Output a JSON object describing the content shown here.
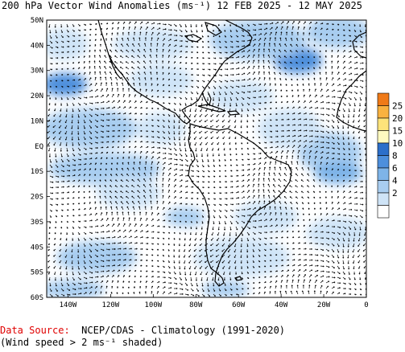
{
  "title": "200 hPa Vector Wind Anomalies (ms⁻¹) 12 FEB 2025 - 12 MAY 2025",
  "footer": {
    "source_label": "Data Source:",
    "source_text": "NCEP/CDAS - Climatology (1991-2020)",
    "note": "(Wind speed > 2 ms⁻¹ shaded)"
  },
  "map": {
    "lon_range": [
      -150,
      0
    ],
    "lat_range": [
      -60,
      50
    ],
    "lat_labels": [
      "50N",
      "40N",
      "30N",
      "20N",
      "10N",
      "EQ",
      "10S",
      "20S",
      "30S",
      "40S",
      "50S",
      "60S"
    ],
    "lon_labels": [
      "140W",
      "120W",
      "100W",
      "80W",
      "60W",
      "40W",
      "20W",
      "0"
    ]
  },
  "colorbar": {
    "levels": [
      "2",
      "4",
      "6",
      "8",
      "10",
      "15",
      "20",
      "25"
    ],
    "colors": [
      "#ffffff",
      "#cfe4f7",
      "#a8cdf0",
      "#7eb4e8",
      "#4d8fdc",
      "#2c6fca",
      "#fffac0",
      "#fde37a",
      "#f9b240",
      "#f07a18"
    ]
  }
}
